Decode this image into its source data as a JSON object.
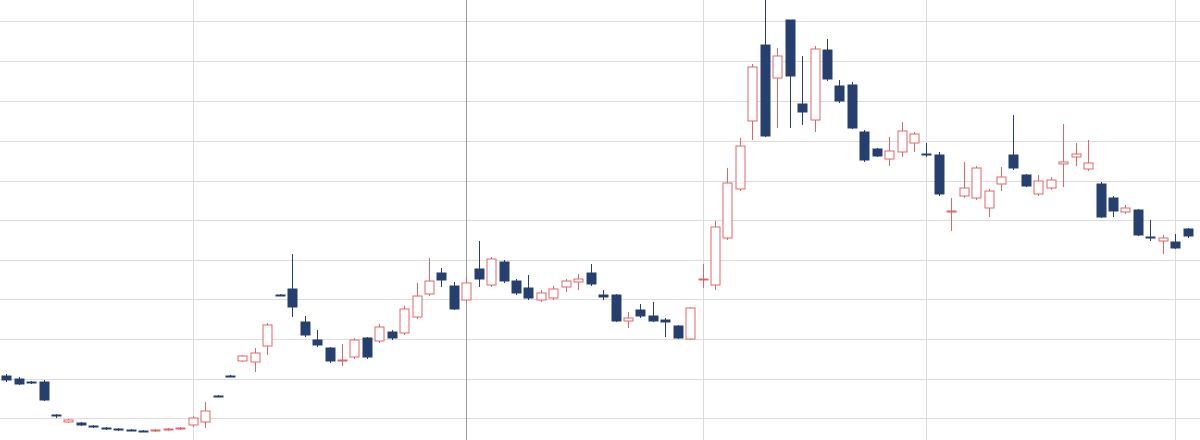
{
  "chart_data": {
    "type": "candlestick",
    "up_color": "#e06666",
    "down_color": "#253f6e",
    "grid": true,
    "ylim": [
      0,
      440
    ],
    "yticks": [
      22,
      61,
      101,
      141,
      180,
      220,
      259,
      299,
      339,
      379,
      419
    ],
    "xlim": [
      -0.5,
      96
    ],
    "xticks": [
      15,
      37,
      56,
      74,
      94
    ],
    "crosshair_x": 37,
    "open": [
      64,
      61,
      58,
      58,
      25,
      18,
      17,
      14,
      12,
      11,
      10,
      9,
      9,
      10,
      11,
      15,
      18,
      44,
      64,
      79,
      78,
      94,
      145,
      151,
      118,
      100,
      92,
      79,
      83,
      102,
      99,
      108,
      107,
      123,
      146,
      167,
      154,
      140,
      171,
      155,
      178,
      159,
      152,
      140,
      142,
      153,
      158,
      167,
      145,
      145,
      119,
      130,
      124,
      120,
      114,
      101,
      160,
      155,
      202,
      251,
      319,
      395,
      362,
      420,
      336,
      320,
      390,
      354,
      355,
      308,
      291,
      281,
      288,
      297,
      286,
      285,
      228,
      244,
      242,
      232,
      256,
      285,
      265,
      246,
      252,
      276,
      283,
      271,
      256,
      242,
      228,
      230,
      203,
      199,
      198,
      211
    ],
    "high": [
      66,
      63,
      59,
      60,
      26,
      21,
      18,
      15,
      13,
      12,
      11,
      10,
      11,
      12,
      13,
      24,
      38,
      45,
      65,
      85,
      92,
      117,
      146,
      186,
      124,
      110,
      93,
      96,
      102,
      103,
      116,
      110,
      134,
      157,
      182,
      172,
      158,
      163,
      199,
      183,
      180,
      161,
      165,
      150,
      154,
      161,
      166,
      176,
      150,
      146,
      128,
      136,
      138,
      122,
      115,
      133,
      176,
      219,
      272,
      302,
      376,
      440,
      392,
      420,
      384,
      394,
      401,
      360,
      358,
      310,
      292,
      303,
      318,
      308,
      297,
      288,
      242,
      278,
      274,
      251,
      273,
      325,
      266,
      265,
      263,
      316,
      297,
      300,
      258,
      244,
      235,
      231,
      220,
      205,
      206,
      212
    ],
    "low": [
      58,
      55,
      56,
      39,
      22,
      17,
      14,
      12,
      10,
      9,
      9,
      8,
      8,
      9,
      10,
      13,
      12,
      43,
      63,
      78,
      68,
      85,
      144,
      123,
      103,
      93,
      77,
      74,
      81,
      81,
      97,
      100,
      105,
      121,
      144,
      153,
      130,
      138,
      153,
      153,
      157,
      145,
      140,
      138,
      140,
      148,
      150,
      154,
      140,
      118,
      112,
      122,
      118,
      103,
      101,
      100,
      152,
      150,
      200,
      249,
      300,
      303,
      312,
      312,
      315,
      308,
      359,
      337,
      311,
      278,
      283,
      274,
      283,
      288,
      283,
      244,
      209,
      242,
      240,
      223,
      249,
      270,
      253,
      244,
      250,
      253,
      274,
      269,
      222,
      223,
      226,
      204,
      199,
      186,
      191,
      202
    ],
    "close": [
      60,
      56,
      57,
      40,
      24,
      20,
      15,
      13,
      11,
      10,
      9,
      8,
      10,
      11,
      12,
      22,
      29,
      44,
      64,
      84,
      87,
      115,
      145,
      133,
      105,
      95,
      79,
      80,
      100,
      83,
      113,
      102,
      131,
      144,
      159,
      160,
      131,
      157,
      161,
      181,
      159,
      147,
      142,
      147,
      151,
      159,
      161,
      156,
      143,
      119,
      122,
      124,
      119,
      118,
      102,
      132,
      161,
      213,
      257,
      294,
      373,
      304,
      384,
      364,
      328,
      391,
      361,
      339,
      312,
      280,
      284,
      289,
      309,
      306,
      285,
      246,
      229,
      252,
      272,
      249,
      263,
      272,
      254,
      259,
      260,
      278,
      286,
      277,
      223,
      229,
      232,
      205,
      202,
      202,
      192,
      204
    ]
  }
}
